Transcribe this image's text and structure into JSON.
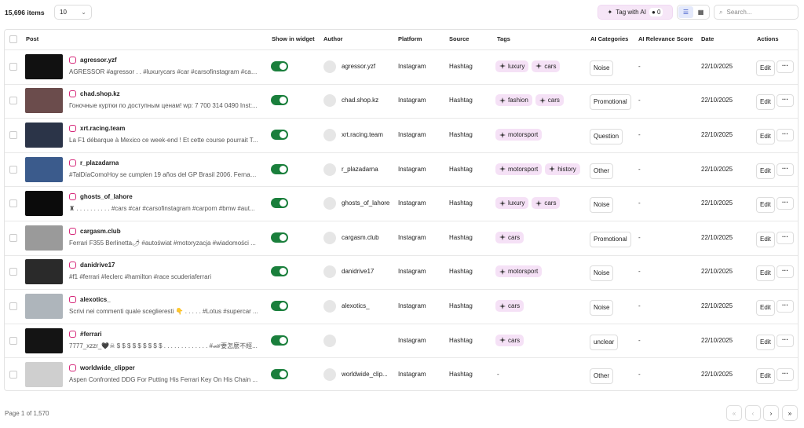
{
  "toolbar": {
    "count": "15,696 items",
    "page_size": "10",
    "tag_ai": "Tag with AI",
    "ai_count": "0",
    "search_placeholder": "Search..."
  },
  "table": {
    "columns": [
      "Post",
      "Show in widget",
      "Author",
      "Platform",
      "Source",
      "Tags",
      "AI Categories",
      "AI Relevance Score",
      "Date",
      "Actions"
    ],
    "rows": [
      {
        "username": "agressor.yzf",
        "caption": "AGRESSOR #agressor . . #luxurycars #car #carsofinstagram #cars ...",
        "author": "agressor.yzf",
        "platform": "Instagram",
        "source": "Hashtag",
        "tags": [
          "luxury",
          "cars"
        ],
        "category": "Noise",
        "relevance": "-",
        "date": "22/10/2025",
        "action": "Edit"
      },
      {
        "username": "chad.shop.kz",
        "caption": "Гоночные куртки по доступным ценам! wp: 7 700 314 0490 Inst:...",
        "author": "chad.shop.kz",
        "platform": "Instagram",
        "source": "Hashtag",
        "tags": [
          "fashion",
          "cars"
        ],
        "category": "Promotional",
        "relevance": "-",
        "date": "22/10/2025",
        "action": "Edit"
      },
      {
        "username": "xrt.racing.team",
        "caption": "La F1 débarque à Mexico ce week-end ! Et cette course pourrait T...",
        "author": "xrt.racing.team",
        "platform": "Instagram",
        "source": "Hashtag",
        "tags": [
          "motorsport"
        ],
        "category": "Question",
        "relevance": "-",
        "date": "22/10/2025",
        "action": "Edit"
      },
      {
        "username": "r_plazadarna",
        "caption": "#TalDíaComoHoy se cumplen 19 años del GP Brasil 2006. Fernand...",
        "author": "r_plazadarna",
        "platform": "Instagram",
        "source": "Hashtag",
        "tags": [
          "motorsport",
          "history"
        ],
        "category": "Other",
        "relevance": "-",
        "date": "22/10/2025",
        "action": "Edit"
      },
      {
        "username": "ghosts_of_lahore",
        "caption": "♜ . . . . . . . . . . #cars #car #carsofinstagram #carporn #bmw #aut...",
        "author": "ghosts_of_lahore",
        "platform": "Instagram",
        "source": "Hashtag",
        "tags": [
          "luxury",
          "cars"
        ],
        "category": "Noise",
        "relevance": "-",
        "date": "22/10/2025",
        "action": "Edit"
      },
      {
        "username": "cargasm.club",
        "caption": "Ferrari F355 Berlinetta🌶 #autoświat #motoryzacja #wiadomości ...",
        "author": "cargasm.club",
        "platform": "Instagram",
        "source": "Hashtag",
        "tags": [
          "cars"
        ],
        "category": "Promotional",
        "relevance": "-",
        "date": "22/10/2025",
        "action": "Edit"
      },
      {
        "username": "danidrive17",
        "caption": "#f1 #ferrari #leclerc #hamilton #race scuderiaferrari",
        "author": "danidrive17",
        "platform": "Instagram",
        "source": "Hashtag",
        "tags": [
          "motorsport"
        ],
        "category": "Noise",
        "relevance": "-",
        "date": "22/10/2025",
        "action": "Edit"
      },
      {
        "username": "alexotics_",
        "caption": "Scrivi nei commenti quale sceglieresti 👇 . . . . . #Lotus #supercar ...",
        "author": "alexotics_",
        "platform": "Instagram",
        "source": "Hashtag",
        "tags": [
          "cars"
        ],
        "category": "Noise",
        "relevance": "-",
        "date": "22/10/2025",
        "action": "Edit"
      },
      {
        "username": "#ferrari",
        "caption": "7777_xzzr_🖤☠ $ $ $ $ $ $ $ $ $ . . . . . . . . . . . . . #🏎要怎麼不經...",
        "platform": "Instagram",
        "source": "Hashtag",
        "tags": [
          "cars"
        ],
        "category": "unclear",
        "relevance": "-",
        "date": "22/10/2025",
        "action": "Edit"
      },
      {
        "username": "worldwide_clipper",
        "caption": "Aspen Confronted DDG For Putting His Ferrari Key On His Chain ...",
        "author": "worldwide_clip...",
        "platform": "Instagram",
        "source": "Hashtag",
        "tags": [],
        "tags_text": "-",
        "category": "Other",
        "relevance": "-",
        "date": "22/10/2025",
        "action": "Edit"
      }
    ]
  },
  "footer": {
    "page_info": "Page 1 of 1,570"
  }
}
